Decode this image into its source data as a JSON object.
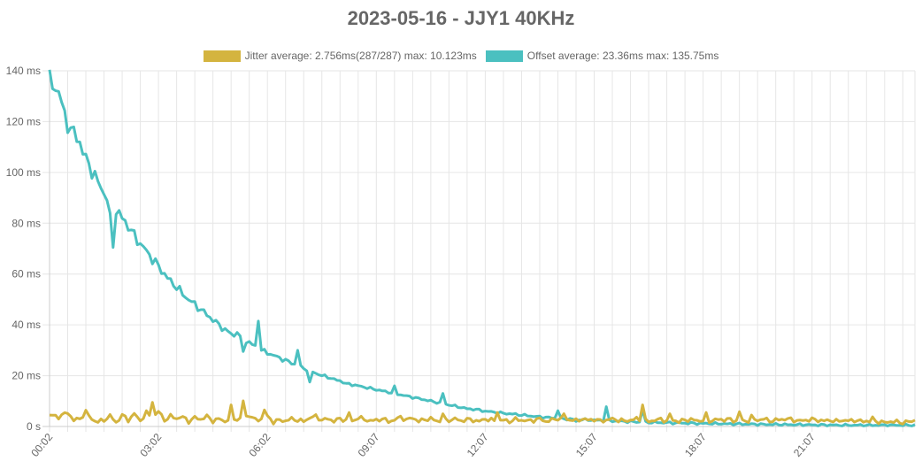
{
  "chart_data": {
    "type": "line",
    "title": "2023-05-16 - JJY1 40KHz",
    "y_tick_labels": [
      "0 s",
      "20 ms",
      "40 ms",
      "60 ms",
      "80 ms",
      "100 ms",
      "120 ms",
      "140 ms"
    ],
    "y_ticks": [
      0,
      20,
      40,
      60,
      80,
      100,
      120,
      140
    ],
    "ylim": [
      0,
      140
    ],
    "x_tick_labels": [
      "00:02",
      "03:02",
      "06:02",
      "09:07",
      "12:07",
      "15:07",
      "18:07",
      "21:07"
    ],
    "x_tick_index": [
      0,
      36,
      72,
      108,
      144,
      180,
      216,
      252
    ],
    "point_count": 287,
    "grid": true,
    "legend_position": "top",
    "series": [
      {
        "name": "Jitter average: 2.756ms(287/287) max: 10.123ms",
        "color": "#d4b43f",
        "keypoints": [
          [
            0,
            4.5
          ],
          [
            3,
            3.8
          ],
          [
            6,
            5.5
          ],
          [
            8,
            2.5
          ],
          [
            10,
            3.0
          ],
          [
            12,
            5.8
          ],
          [
            14,
            2.8
          ],
          [
            16,
            1.8
          ],
          [
            18,
            2.5
          ],
          [
            20,
            4.2
          ],
          [
            22,
            1.5
          ],
          [
            24,
            4.5
          ],
          [
            26,
            2.5
          ],
          [
            28,
            5.0
          ],
          [
            30,
            2.2
          ],
          [
            32,
            5.5
          ],
          [
            34,
            3.0
          ],
          [
            36,
            6.0
          ],
          [
            38,
            2.5
          ],
          [
            40,
            4.0
          ],
          [
            42,
            3.2
          ],
          [
            44,
            3.8
          ],
          [
            46,
            2.0
          ],
          [
            48,
            3.5
          ],
          [
            50,
            2.8
          ],
          [
            52,
            4.0
          ],
          [
            54,
            2.2
          ],
          [
            56,
            3.0
          ],
          [
            58,
            2.0
          ],
          [
            60,
            3.5
          ],
          [
            62,
            2.8
          ],
          [
            64,
            3.2
          ],
          [
            66,
            4.5
          ],
          [
            68,
            2.5
          ],
          [
            70,
            3.0
          ],
          [
            72,
            4.0
          ],
          [
            74,
            1.8
          ],
          [
            76,
            2.5
          ],
          [
            78,
            2.2
          ],
          [
            80,
            3.0
          ],
          [
            82,
            2.5
          ],
          [
            84,
            2.0
          ],
          [
            86,
            3.5
          ],
          [
            88,
            4.0
          ],
          [
            90,
            2.5
          ],
          [
            92,
            3.0
          ],
          [
            94,
            2.2
          ],
          [
            96,
            3.0
          ],
          [
            98,
            2.5
          ],
          [
            100,
            2.0
          ],
          [
            102,
            3.5
          ],
          [
            104,
            2.8
          ],
          [
            106,
            2.2
          ],
          [
            108,
            2.5
          ],
          [
            110,
            3.0
          ],
          [
            112,
            2.0
          ],
          [
            114,
            2.5
          ],
          [
            116,
            3.8
          ],
          [
            118,
            2.5
          ],
          [
            120,
            3.5
          ],
          [
            122,
            2.0
          ],
          [
            124,
            2.8
          ],
          [
            126,
            3.0
          ],
          [
            128,
            2.2
          ],
          [
            130,
            2.0
          ],
          [
            132,
            2.5
          ],
          [
            134,
            3.0
          ],
          [
            136,
            2.2
          ],
          [
            138,
            2.8
          ],
          [
            140,
            2.5
          ],
          [
            142,
            2.0
          ],
          [
            144,
            3.0
          ],
          [
            146,
            2.5
          ],
          [
            148,
            2.2
          ],
          [
            150,
            2.5
          ],
          [
            152,
            2.0
          ],
          [
            154,
            2.8
          ],
          [
            156,
            2.5
          ],
          [
            158,
            2.2
          ],
          [
            160,
            2.5
          ],
          [
            162,
            3.0
          ],
          [
            164,
            2.0
          ],
          [
            166,
            2.5
          ],
          [
            168,
            3.2
          ],
          [
            170,
            2.5
          ],
          [
            172,
            2.8
          ],
          [
            174,
            2.2
          ],
          [
            176,
            3.0
          ],
          [
            178,
            2.5
          ],
          [
            180,
            2.8
          ],
          [
            182,
            2.2
          ],
          [
            184,
            2.5
          ],
          [
            186,
            3.0
          ],
          [
            188,
            2.5
          ],
          [
            190,
            2.2
          ],
          [
            192,
            2.5
          ],
          [
            194,
            3.0
          ],
          [
            196,
            2.5
          ],
          [
            198,
            2.0
          ],
          [
            200,
            2.5
          ],
          [
            202,
            2.8
          ],
          [
            204,
            2.2
          ],
          [
            206,
            2.5
          ],
          [
            208,
            2.0
          ],
          [
            210,
            2.5
          ],
          [
            212,
            2.8
          ],
          [
            214,
            2.2
          ],
          [
            216,
            2.5
          ],
          [
            218,
            2.0
          ],
          [
            220,
            2.8
          ],
          [
            222,
            2.5
          ],
          [
            224,
            3.0
          ],
          [
            226,
            2.2
          ],
          [
            228,
            2.5
          ],
          [
            230,
            2.0
          ],
          [
            232,
            2.8
          ],
          [
            234,
            2.5
          ],
          [
            236,
            3.0
          ],
          [
            238,
            2.2
          ],
          [
            240,
            2.5
          ],
          [
            242,
            2.8
          ],
          [
            244,
            3.0
          ],
          [
            246,
            2.5
          ],
          [
            248,
            2.2
          ],
          [
            250,
            2.5
          ],
          [
            252,
            2.8
          ],
          [
            254,
            2.5
          ],
          [
            256,
            2.2
          ],
          [
            258,
            2.5
          ],
          [
            260,
            2.0
          ],
          [
            262,
            2.5
          ],
          [
            264,
            2.2
          ],
          [
            266,
            2.5
          ],
          [
            268,
            2.0
          ],
          [
            270,
            2.2
          ],
          [
            272,
            1.8
          ],
          [
            274,
            2.0
          ],
          [
            276,
            1.5
          ],
          [
            278,
            2.0
          ],
          [
            280,
            1.8
          ],
          [
            282,
            1.5
          ],
          [
            284,
            2.0
          ],
          [
            286,
            1.5
          ]
        ],
        "spikes": [
          [
            34,
            9.5
          ],
          [
            60,
            8.5
          ],
          [
            64,
            10.1
          ],
          [
            71,
            6.5
          ],
          [
            99,
            5.5
          ],
          [
            130,
            5.0
          ],
          [
            148,
            5.5
          ],
          [
            170,
            5.0
          ],
          [
            196,
            8.5
          ],
          [
            205,
            5.0
          ],
          [
            217,
            5.5
          ],
          [
            228,
            5.8
          ],
          [
            232,
            4.5
          ],
          [
            272,
            3.8
          ],
          [
            286,
            2.5
          ]
        ]
      },
      {
        "name": "Offset average: 23.36ms max: 135.75ms",
        "color": "#4bc0c0",
        "keypoints": [
          [
            0,
            135.8
          ],
          [
            3,
            132
          ],
          [
            5,
            122
          ],
          [
            7,
            117
          ],
          [
            10,
            112
          ],
          [
            12,
            105
          ],
          [
            14,
            101
          ],
          [
            16,
            96
          ],
          [
            18,
            92
          ],
          [
            20,
            88
          ],
          [
            22,
            85
          ],
          [
            24,
            82
          ],
          [
            26,
            79
          ],
          [
            28,
            75
          ],
          [
            30,
            72
          ],
          [
            32,
            69
          ],
          [
            34,
            66
          ],
          [
            36,
            63
          ],
          [
            38,
            60
          ],
          [
            40,
            57
          ],
          [
            42,
            55
          ],
          [
            44,
            52
          ],
          [
            46,
            50
          ],
          [
            48,
            48
          ],
          [
            50,
            46
          ],
          [
            52,
            44
          ],
          [
            54,
            42
          ],
          [
            56,
            40
          ],
          [
            58,
            38
          ],
          [
            60,
            36.5
          ],
          [
            62,
            35
          ],
          [
            64,
            34
          ],
          [
            66,
            33
          ],
          [
            68,
            31.5
          ],
          [
            70,
            30
          ],
          [
            72,
            29
          ],
          [
            74,
            28
          ],
          [
            76,
            27
          ],
          [
            78,
            26
          ],
          [
            80,
            25
          ],
          [
            82,
            24
          ],
          [
            84,
            23
          ],
          [
            86,
            22
          ],
          [
            88,
            21
          ],
          [
            90,
            20
          ],
          [
            92,
            19.5
          ],
          [
            94,
            18.5
          ],
          [
            96,
            18
          ],
          [
            98,
            17
          ],
          [
            100,
            16.5
          ],
          [
            102,
            16
          ],
          [
            104,
            15.5
          ],
          [
            106,
            15
          ],
          [
            108,
            14.5
          ],
          [
            110,
            14
          ],
          [
            112,
            13.5
          ],
          [
            114,
            13
          ],
          [
            116,
            12.5
          ],
          [
            118,
            12
          ],
          [
            120,
            11.5
          ],
          [
            122,
            11
          ],
          [
            124,
            10.5
          ],
          [
            126,
            10
          ],
          [
            128,
            9.5
          ],
          [
            130,
            9
          ],
          [
            132,
            8.5
          ],
          [
            134,
            8
          ],
          [
            136,
            7.5
          ],
          [
            138,
            7
          ],
          [
            140,
            6.8
          ],
          [
            142,
            6.5
          ],
          [
            144,
            6
          ],
          [
            146,
            5.8
          ],
          [
            148,
            5.5
          ],
          [
            150,
            5.2
          ],
          [
            152,
            5
          ],
          [
            154,
            4.8
          ],
          [
            156,
            4.5
          ],
          [
            158,
            4.3
          ],
          [
            160,
            4
          ],
          [
            162,
            3.8
          ],
          [
            164,
            3.6
          ],
          [
            166,
            3.4
          ],
          [
            168,
            3.2
          ],
          [
            170,
            3.0
          ],
          [
            172,
            2.9
          ],
          [
            174,
            2.8
          ],
          [
            176,
            2.7
          ],
          [
            178,
            2.6
          ],
          [
            180,
            2.5
          ],
          [
            182,
            2.4
          ],
          [
            184,
            2.3
          ],
          [
            186,
            2.2
          ],
          [
            188,
            2.1
          ],
          [
            190,
            2.0
          ],
          [
            192,
            1.9
          ],
          [
            194,
            1.8
          ],
          [
            196,
            1.7
          ],
          [
            198,
            1.6
          ],
          [
            200,
            1.6
          ],
          [
            202,
            1.5
          ],
          [
            204,
            1.5
          ],
          [
            206,
            1.4
          ],
          [
            208,
            1.4
          ],
          [
            210,
            1.3
          ],
          [
            212,
            1.3
          ],
          [
            214,
            1.2
          ],
          [
            216,
            1.2
          ],
          [
            218,
            1.2
          ],
          [
            220,
            1.1
          ],
          [
            222,
            1.1
          ],
          [
            224,
            1.0
          ],
          [
            226,
            1.0
          ],
          [
            228,
            1.0
          ],
          [
            230,
            0.9
          ],
          [
            232,
            0.9
          ],
          [
            234,
            0.9
          ],
          [
            236,
            0.8
          ],
          [
            238,
            0.8
          ],
          [
            240,
            0.8
          ],
          [
            242,
            0.8
          ],
          [
            244,
            0.7
          ],
          [
            246,
            0.7
          ],
          [
            248,
            0.7
          ],
          [
            250,
            0.7
          ],
          [
            252,
            0.6
          ],
          [
            254,
            0.6
          ],
          [
            256,
            0.6
          ],
          [
            258,
            0.6
          ],
          [
            260,
            0.5
          ],
          [
            262,
            0.5
          ],
          [
            264,
            0.5
          ],
          [
            266,
            0.5
          ],
          [
            268,
            0.5
          ],
          [
            270,
            0.5
          ],
          [
            272,
            0.5
          ],
          [
            274,
            0.5
          ],
          [
            276,
            0.5
          ],
          [
            278,
            0.5
          ],
          [
            280,
            0.5
          ],
          [
            282,
            0.5
          ],
          [
            284,
            0.5
          ],
          [
            286,
            0.5
          ]
        ],
        "spikes": [
          [
            20,
            84
          ],
          [
            21,
            70.5
          ],
          [
            62,
            37
          ],
          [
            64,
            29.5
          ],
          [
            69,
            41.5
          ],
          [
            82,
            30
          ],
          [
            86,
            17.5
          ],
          [
            98,
            17
          ],
          [
            114,
            16
          ],
          [
            130,
            13
          ],
          [
            168,
            6.2
          ],
          [
            174,
            2.0
          ],
          [
            184,
            7.8
          ],
          [
            196,
            6.5
          ]
        ]
      }
    ]
  }
}
